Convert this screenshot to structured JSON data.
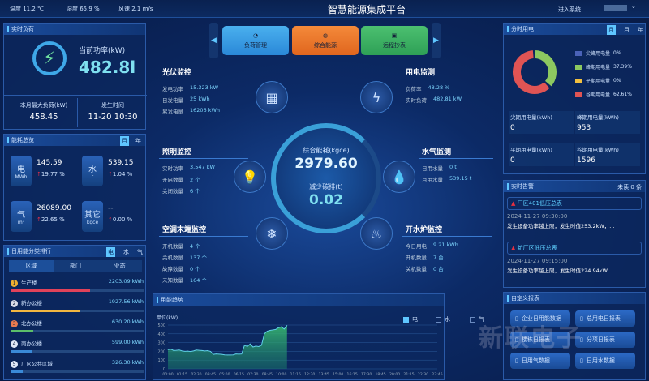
{
  "topbar": {
    "weather": [
      "温度 11.2 ℃",
      "湿度 65.9 %",
      "风速 2.1 m/s"
    ],
    "title": "智慧能源集成平台",
    "enter": "进入系统",
    "user_caret": "⌄"
  },
  "realtime_load": {
    "title": "实时负荷",
    "power_label": "当前功率(kW)",
    "power": "482.8l",
    "max_label": "本月最大负荷(kW)",
    "max": "458.45",
    "time_label": "发生时间",
    "time": "11-20 10:30"
  },
  "overview": {
    "title": "能耗总览",
    "toggles": [
      "月",
      "年"
    ],
    "items": [
      {
        "name": "电",
        "unit": "MWh",
        "value": "145.59",
        "change": "19.77 %"
      },
      {
        "name": "水",
        "unit": "t",
        "value": "539.15",
        "change": "1.04 %"
      },
      {
        "name": "气",
        "unit": "m³",
        "value": "26089.00",
        "change": "22.65 %"
      },
      {
        "name": "其它",
        "unit": "kgce",
        "value": "--",
        "change": "0.00 %"
      }
    ]
  },
  "ranking": {
    "title": "日用能分类排行",
    "toggles": [
      "电",
      "水",
      "气"
    ],
    "tabs": [
      "区域",
      "部门",
      "业态"
    ],
    "items": [
      {
        "rank": "1",
        "name": "生产楼",
        "value": "2203.09 kWh",
        "pct": 1,
        "color": "#e0425a"
      },
      {
        "rank": "2",
        "name": "新办公楼",
        "value": "1927.56 kWh",
        "pct": 0.875,
        "color": "#f2b640"
      },
      {
        "rank": "3",
        "name": "北办公楼",
        "value": "630.20 kWh",
        "pct": 0.286,
        "color": "#5cbf6a"
      },
      {
        "rank": "4",
        "name": "南办公楼",
        "value": "599.00 kWh",
        "pct": 0.272,
        "color": "#3a8ad8"
      },
      {
        "rank": "5",
        "name": "厂区公共区域",
        "value": "326.30 kWh",
        "pct": 0.148,
        "color": "#3a8ad8"
      }
    ]
  },
  "nav": {
    "buttons": [
      "负荷管理",
      "综合能源",
      "远程抄表"
    ]
  },
  "center": {
    "total_label": "综合能耗(kgce)",
    "total": "2979.60",
    "carbon_label": "减少碳排(t)",
    "carbon": "0.02",
    "pv": {
      "title": "光伏监控",
      "rows": [
        [
          "发电功率",
          "15.323 kW"
        ],
        [
          "日发电量",
          "25 kWh"
        ],
        [
          "累发电量",
          "16206 kWh"
        ]
      ]
    },
    "elec": {
      "title": "用电监测",
      "rows": [
        [
          "负荷率",
          "48.28 %"
        ],
        [
          "实时负荷",
          "482.81 kW"
        ]
      ]
    },
    "light": {
      "title": "照明监控",
      "rows": [
        [
          "实时功率",
          "3.547 kW"
        ],
        [
          "开启数量",
          "2 个"
        ],
        [
          "关闭数量",
          "6 个"
        ]
      ]
    },
    "water": {
      "title": "水气监测",
      "rows": [
        [
          "日用水量",
          "0 t"
        ],
        [
          "月用水量",
          "539.15 t"
        ]
      ]
    },
    "ac": {
      "title": "空调末端监控",
      "rows": [
        [
          "开机数量",
          "4 个"
        ],
        [
          "关机数量",
          "137 个"
        ],
        [
          "故障数量",
          "0 个"
        ],
        [
          "未知数量",
          "164 个"
        ]
      ]
    },
    "boiler": {
      "title": "开水炉监控",
      "rows": [
        [
          "今日用电",
          "9.21 kWh"
        ],
        [
          "开机数量",
          "7 台"
        ],
        [
          "关机数量",
          "0 台"
        ]
      ]
    }
  },
  "tou": {
    "title": "分时用电",
    "toggles": [
      "月",
      "月",
      "年"
    ],
    "legend": [
      {
        "label": "尖峰用电量",
        "pct": "0%",
        "color": "#4a62b8"
      },
      {
        "label": "峰期用电量",
        "pct": "37.39%",
        "color": "#8cc860"
      },
      {
        "label": "平期用电量",
        "pct": "0%",
        "color": "#f2c040"
      },
      {
        "label": "谷期用电量",
        "pct": "62.61%",
        "color": "#e05454"
      }
    ],
    "stats": [
      {
        "label": "尖期用电量(kWh)",
        "value": "0"
      },
      {
        "label": "峰期用电量(kWh)",
        "value": "953"
      },
      {
        "label": "平期用电量(kWh)",
        "value": "0"
      },
      {
        "label": "谷期用电量(kWh)",
        "value": "1596"
      }
    ]
  },
  "alarms": {
    "title": "实时告警",
    "unread": "未读 0 条",
    "items": [
      {
        "name": "厂区401低压总表",
        "time": "2024-11-27 09:30:00",
        "msg": "发生设备功率越上限，发生时值253.2kW，..."
      },
      {
        "name": "新厂区低压总表",
        "time": "2024-11-27 09:15:00",
        "msg": "发生设备功率越上限，发生时值224.94kW..."
      }
    ]
  },
  "reports": {
    "title": "自定义报表",
    "buttons": [
      "企业日用能数据",
      "总用电日报表",
      "楼栋日报表",
      "分项日报表",
      "日用气数据",
      "日用水数据"
    ]
  },
  "watermark": "新联电子",
  "chart_data": {
    "type": "area",
    "title": "用能趋势",
    "ylabel": "单位(kW)",
    "ylim": [
      0,
      500
    ],
    "yticks": [
      0,
      100,
      200,
      300,
      400,
      500
    ],
    "legend": [
      "电",
      "水",
      "气"
    ],
    "legend_active": "电",
    "xticks": [
      "00:00",
      "01:15",
      "02:30",
      "03:45",
      "05:00",
      "06:15",
      "07:30",
      "08:45",
      "10:00",
      "11:15",
      "12:30",
      "13:45",
      "15:00",
      "16:15",
      "17:30",
      "18:45",
      "20:00",
      "21:15",
      "22:30",
      "23:45"
    ],
    "x_step_minutes": 15,
    "series": [
      {
        "name": "电",
        "color": "#5fd0e8",
        "values": [
          220,
          225,
          210,
          212,
          215,
          205,
          200,
          202,
          198,
          205,
          215,
          212,
          210,
          205,
          208,
          200,
          165,
          170,
          168,
          165,
          160,
          158,
          158,
          160,
          170,
          168,
          170,
          270,
          255,
          285,
          250,
          260,
          255,
          270,
          400,
          430,
          440,
          445,
          450,
          470,
          480,
          455,
          495
        ]
      }
    ]
  }
}
